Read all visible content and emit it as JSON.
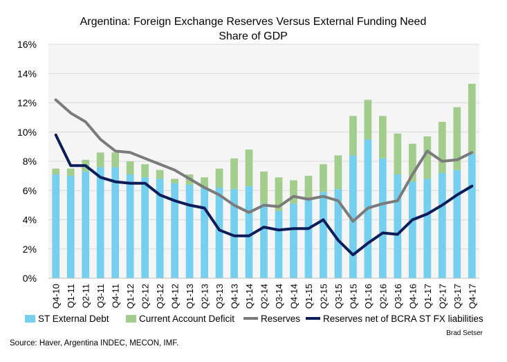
{
  "chart_data": {
    "type": "bar+line",
    "title": "Argentina: Foreign Exchange Reserves Versus External Funding Need",
    "subtitle": "Share of GDP",
    "categories": [
      "Q4-10",
      "Q1-11",
      "Q2-11",
      "Q3-11",
      "Q4-11",
      "Q1-12",
      "Q2-12",
      "Q3-12",
      "Q4-12",
      "Q1-13",
      "Q2-13",
      "Q3-13",
      "Q4-13",
      "Q1-14",
      "Q2-14",
      "Q3-14",
      "Q4-14",
      "Q1-15",
      "Q2-15",
      "Q3-15",
      "Q4-15",
      "Q1-16",
      "Q2-16",
      "Q3-16",
      "Q4-16",
      "Q1-17",
      "Q2-17",
      "Q3-17",
      "Q4-17"
    ],
    "ylim": [
      0,
      16
    ],
    "yticks": [
      "0%",
      "2%",
      "4%",
      "6%",
      "8%",
      "10%",
      "12%",
      "14%",
      "16%"
    ],
    "ytick_values": [
      0,
      2,
      4,
      6,
      8,
      10,
      12,
      14,
      16
    ],
    "grid": true,
    "stacked_bars": [
      {
        "name": "ST External Debt",
        "color": "#75cfee",
        "values": [
          7.1,
          7.0,
          7.3,
          7.6,
          7.6,
          7.1,
          6.9,
          6.8,
          6.5,
          6.4,
          6.2,
          6.2,
          6.1,
          6.3,
          5.1,
          4.6,
          5.1,
          5.4,
          5.9,
          6.1,
          8.4,
          9.5,
          8.2,
          7.1,
          6.6,
          6.8,
          7.2,
          7.4,
          8.5
        ]
      },
      {
        "name": "Current Account Deficit",
        "color": "#a3cd8c",
        "values": [
          0.4,
          0.5,
          0.8,
          1.0,
          1.0,
          0.9,
          0.9,
          0.6,
          0.3,
          0.7,
          0.7,
          1.3,
          2.1,
          2.5,
          2.2,
          2.3,
          1.6,
          1.6,
          1.9,
          2.3,
          2.7,
          2.7,
          2.9,
          2.8,
          2.6,
          2.9,
          3.5,
          4.3,
          4.8
        ]
      }
    ],
    "lines": [
      {
        "name": "Reserves",
        "color": "#7b7b7b",
        "values": [
          12.2,
          11.3,
          10.7,
          9.5,
          8.7,
          8.6,
          8.2,
          7.8,
          7.4,
          6.8,
          6.2,
          5.7,
          5.0,
          4.5,
          5.0,
          4.9,
          5.6,
          5.4,
          5.6,
          5.3,
          3.9,
          4.8,
          5.1,
          5.3,
          7.1,
          8.7,
          8.0,
          8.1,
          8.6
        ]
      },
      {
        "name": "Reserves net of BCRA ST FX liabilities",
        "color": "#0c1d5c",
        "values": [
          9.8,
          7.7,
          7.7,
          6.9,
          6.6,
          6.5,
          6.5,
          5.7,
          5.3,
          5.0,
          4.8,
          3.3,
          2.9,
          2.9,
          3.5,
          3.3,
          3.4,
          3.4,
          4.0,
          2.6,
          1.6,
          2.4,
          3.1,
          3.0,
          4.0,
          4.4,
          5.0,
          5.7,
          6.3
        ]
      }
    ],
    "legend": [
      "ST External Debt",
      "Current Account Deficit",
      "Reserves",
      "Reserves net of BCRA ST FX liabilities"
    ],
    "legend_position": "bottom",
    "author": "Brad Setser",
    "source": "Source: Haver, Argentina INDEC, MECON, IMF."
  },
  "colors": {
    "background": "#ffffff",
    "plot_area": "#f5f5f5",
    "gridline": "#d9d9d9"
  }
}
